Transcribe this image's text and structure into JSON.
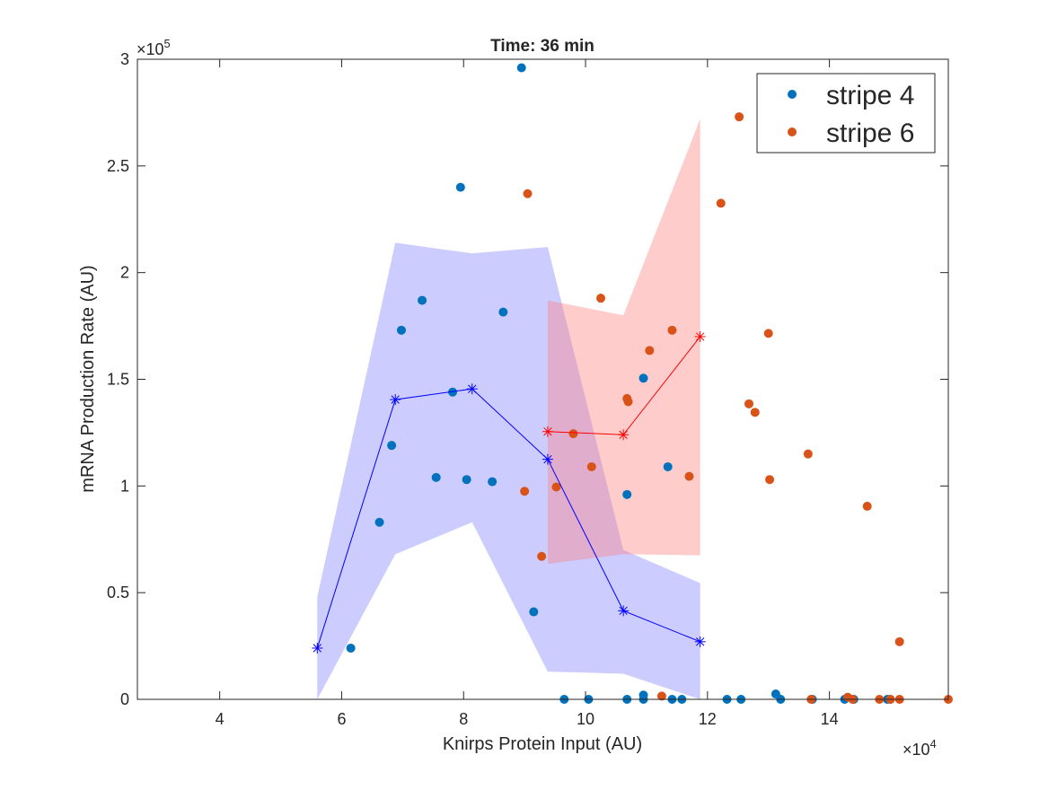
{
  "chart_data": {
    "type": "scatter",
    "title": "Time: 36 min",
    "xlabel": "Knirps Protein Input (AU)",
    "ylabel": "mRNA Production Rate (AU)",
    "x_exponent_label": "×10",
    "x_exponent_power": "4",
    "y_exponent_label": "×10",
    "y_exponent_power": "5",
    "xlim": [
      2.65,
      15.95
    ],
    "ylim": [
      0,
      3
    ],
    "x_ticks": [
      4,
      6,
      8,
      10,
      12,
      14
    ],
    "x_tick_labels": [
      "4",
      "6",
      "8",
      "10",
      "12",
      "14"
    ],
    "y_ticks": [
      0,
      0.5,
      1,
      1.5,
      2,
      2.5,
      3
    ],
    "y_tick_labels": [
      "0",
      "0.5",
      "1",
      "1.5",
      "2",
      "2.5",
      "3"
    ],
    "grid": false,
    "legend_position": "top-right",
    "series": [
      {
        "name": "stripe 4",
        "kind": "scatter",
        "color": "#0072BD",
        "points": [
          [
            6.15,
            0.24
          ],
          [
            6.62,
            0.83
          ],
          [
            6.82,
            1.19
          ],
          [
            6.98,
            1.73
          ],
          [
            7.32,
            1.87
          ],
          [
            7.55,
            1.04
          ],
          [
            7.82,
            1.44
          ],
          [
            7.95,
            2.4
          ],
          [
            8.05,
            1.03
          ],
          [
            8.47,
            1.02
          ],
          [
            8.65,
            1.815
          ],
          [
            8.95,
            2.96
          ],
          [
            9.15,
            0.41
          ],
          [
            9.65,
            0
          ],
          [
            10.05,
            0
          ],
          [
            10.68,
            0
          ],
          [
            10.68,
            0.96
          ],
          [
            10.95,
            0
          ],
          [
            10.95,
            0.02
          ],
          [
            10.95,
            1.505
          ],
          [
            11.35,
            1.09
          ],
          [
            11.42,
            0
          ],
          [
            11.58,
            0
          ],
          [
            12.32,
            0
          ],
          [
            12.55,
            0
          ],
          [
            13.12,
            0.025
          ],
          [
            13.2,
            0
          ],
          [
            13.72,
            0
          ],
          [
            14.25,
            0
          ],
          [
            14.4,
            0
          ],
          [
            14.95,
            0
          ],
          [
            15.0,
            0
          ]
        ]
      },
      {
        "name": "stripe 6",
        "kind": "scatter",
        "color": "#D95319",
        "points": [
          [
            9.05,
            2.37
          ],
          [
            9.0,
            0.975
          ],
          [
            9.28,
            0.67
          ],
          [
            9.52,
            0.995
          ],
          [
            9.8,
            1.245
          ],
          [
            10.1,
            1.09
          ],
          [
            10.25,
            1.88
          ],
          [
            10.68,
            1.41
          ],
          [
            10.7,
            1.395
          ],
          [
            11.05,
            1.635
          ],
          [
            11.25,
            0.015
          ],
          [
            11.42,
            1.73
          ],
          [
            11.7,
            1.045
          ],
          [
            12.22,
            2.325
          ],
          [
            12.52,
            2.73
          ],
          [
            12.68,
            1.385
          ],
          [
            12.78,
            1.345
          ],
          [
            13.0,
            1.715
          ],
          [
            13.02,
            1.03
          ],
          [
            13.65,
            1.15
          ],
          [
            13.7,
            0
          ],
          [
            14.3,
            0.01
          ],
          [
            14.38,
            0
          ],
          [
            14.62,
            0.905
          ],
          [
            14.82,
            0
          ],
          [
            15.0,
            0
          ],
          [
            15.15,
            0.27
          ],
          [
            15.15,
            0
          ],
          [
            15.95,
            0
          ]
        ]
      },
      {
        "kind": "line",
        "color": "#0000FF",
        "band_color": "#8080FF",
        "x": [
          5.6,
          6.88,
          8.14,
          9.38,
          10.62,
          11.88
        ],
        "y": [
          0.24,
          1.405,
          1.455,
          1.125,
          0.415,
          0.27
        ],
        "band_upper": [
          0.48,
          2.14,
          2.09,
          2.12,
          0.7,
          0.545
        ],
        "band_lower": [
          0,
          0.68,
          0.83,
          0.13,
          0.12,
          0
        ]
      },
      {
        "kind": "line",
        "color": "#FF0000",
        "band_color": "#FF8080",
        "x": [
          9.38,
          10.62,
          11.88
        ],
        "y": [
          1.255,
          1.24,
          1.7
        ],
        "band_upper": [
          1.87,
          1.8,
          2.72
        ],
        "band_lower": [
          0.635,
          0.68,
          0.675
        ]
      }
    ]
  }
}
